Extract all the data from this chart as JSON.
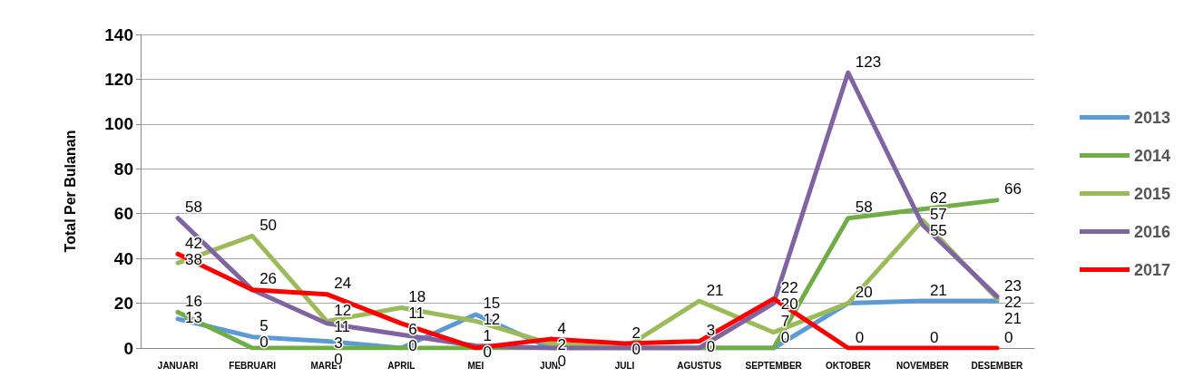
{
  "chart_data": {
    "type": "line",
    "ylabel": "Total Per Bulanan",
    "categories": [
      "JANUARI",
      "FEBRUARI",
      "MARET",
      "APRIL",
      "MEI",
      "JUNI",
      "JULI",
      "AGUSTUS",
      "SEPTEMBER",
      "OKTOBER",
      "NOVEMBER",
      "DESEMBER"
    ],
    "series": [
      {
        "name": "2013",
        "color": "#5b9bd5",
        "values": [
          13,
          5,
          3,
          0,
          15,
          0,
          0,
          0,
          0,
          20,
          21,
          21
        ],
        "value_labels": [
          "13",
          "5",
          "3",
          "0",
          "15",
          "0",
          "0",
          "0",
          "0",
          "20",
          "21",
          "21"
        ]
      },
      {
        "name": "2014",
        "color": "#70ad47",
        "values": [
          16,
          0,
          0,
          0,
          0,
          0,
          0,
          0,
          0,
          58,
          62,
          66
        ],
        "value_labels": [
          "16",
          "0",
          "0",
          null,
          "0",
          null,
          null,
          null,
          null,
          "58",
          "62",
          "66"
        ]
      },
      {
        "name": "2015",
        "color": "#9bbb59",
        "values": [
          38,
          50,
          12,
          18,
          12,
          2,
          0,
          21,
          7,
          20,
          57,
          22
        ],
        "value_labels": [
          "38",
          "50",
          "12",
          "18",
          "12",
          "2",
          null,
          "21",
          "7",
          null,
          "57",
          "22"
        ]
      },
      {
        "name": "2016",
        "color": "#8064a2",
        "values": [
          58,
          26,
          11,
          6,
          1,
          0,
          0,
          0,
          20,
          123,
          55,
          23
        ],
        "value_labels": [
          "58",
          "26",
          "11",
          "6",
          "1",
          null,
          null,
          null,
          "20",
          "123",
          "55",
          "23"
        ]
      },
      {
        "name": "2017",
        "color": "#ff0000",
        "values": [
          42,
          26,
          24,
          11,
          0,
          4,
          2,
          3,
          22,
          0,
          0,
          0
        ],
        "value_labels": [
          "42",
          null,
          "24",
          "11",
          null,
          "4",
          "2",
          "3",
          "22",
          "0",
          "0",
          "0"
        ]
      }
    ],
    "ylim": [
      0,
      140
    ],
    "yticks": [
      0,
      20,
      40,
      60,
      80,
      100,
      120,
      140
    ],
    "grid": "y",
    "legend": "right",
    "marker": "none",
    "line_style": "solid"
  }
}
